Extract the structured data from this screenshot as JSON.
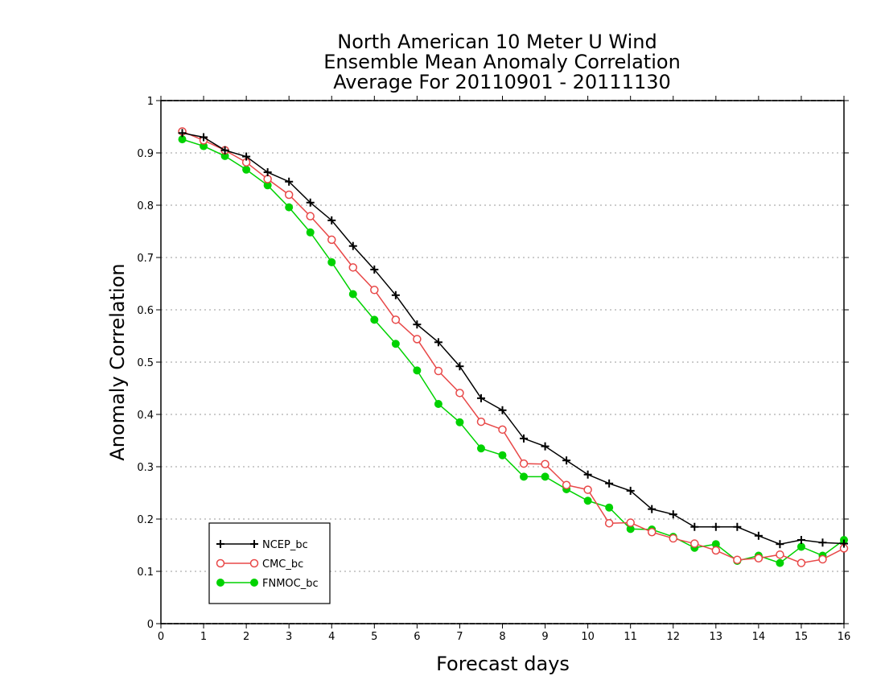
{
  "chart_data": {
    "type": "line",
    "title": [
      "North American 10 Meter U Wind",
      "Ensemble Mean Anomaly Correlation",
      "Average For 20110901 - 20111130"
    ],
    "xlabel": "Forecast days",
    "ylabel": "Anomaly Correlation",
    "xlim": [
      0,
      16
    ],
    "ylim": [
      0,
      1
    ],
    "xticks": [
      0,
      1,
      2,
      3,
      4,
      5,
      6,
      7,
      8,
      9,
      10,
      11,
      12,
      13,
      14,
      15,
      16
    ],
    "yticks": [
      0,
      0.1,
      0.2,
      0.3,
      0.4,
      0.5,
      0.6,
      0.7,
      0.8,
      0.9,
      1
    ],
    "ytick_labels": [
      "0",
      "0.1",
      "0.2",
      "0.3",
      "0.4",
      "0.5",
      "0.6",
      "0.7",
      "0.8",
      "0.9",
      "1"
    ],
    "grid": "horizontal-dotted",
    "legend_position": "bottom-left",
    "x": [
      0.5,
      1,
      1.5,
      2,
      2.5,
      3,
      3.5,
      4,
      4.5,
      5,
      5.5,
      6,
      6.5,
      7,
      7.5,
      8,
      8.5,
      9,
      9.5,
      10,
      10.5,
      11,
      11.5,
      12,
      12.5,
      13,
      13.5,
      14,
      14.5,
      15,
      15.5,
      16
    ],
    "series": [
      {
        "name": "NCEP_bc",
        "color": "#000000",
        "marker": "plus",
        "values": [
          0.938,
          0.93,
          0.905,
          0.893,
          0.863,
          0.845,
          0.805,
          0.771,
          0.722,
          0.677,
          0.628,
          0.572,
          0.538,
          0.492,
          0.431,
          0.408,
          0.354,
          0.339,
          0.312,
          0.285,
          0.268,
          0.254,
          0.219,
          0.209,
          0.185,
          0.185,
          0.185,
          0.168,
          0.152,
          0.16,
          0.155,
          0.153
        ]
      },
      {
        "name": "CMC_bc",
        "color": "#e84848",
        "marker": "open-circle",
        "values": [
          0.941,
          0.924,
          0.905,
          0.882,
          0.85,
          0.82,
          0.779,
          0.734,
          0.681,
          0.638,
          0.581,
          0.544,
          0.483,
          0.441,
          0.386,
          0.371,
          0.306,
          0.305,
          0.265,
          0.256,
          0.192,
          0.193,
          0.175,
          0.163,
          0.153,
          0.14,
          0.122,
          0.125,
          0.132,
          0.116,
          0.123,
          0.144
        ]
      },
      {
        "name": "FNMOC_bc",
        "color": "#00d200",
        "marker": "filled-circle",
        "values": [
          0.926,
          0.913,
          0.894,
          0.868,
          0.838,
          0.796,
          0.748,
          0.691,
          0.63,
          0.581,
          0.535,
          0.484,
          0.42,
          0.385,
          0.335,
          0.322,
          0.281,
          0.281,
          0.257,
          0.235,
          0.222,
          0.181,
          0.18,
          0.166,
          0.145,
          0.152,
          0.12,
          0.13,
          0.116,
          0.147,
          0.13,
          0.16
        ]
      }
    ]
  }
}
